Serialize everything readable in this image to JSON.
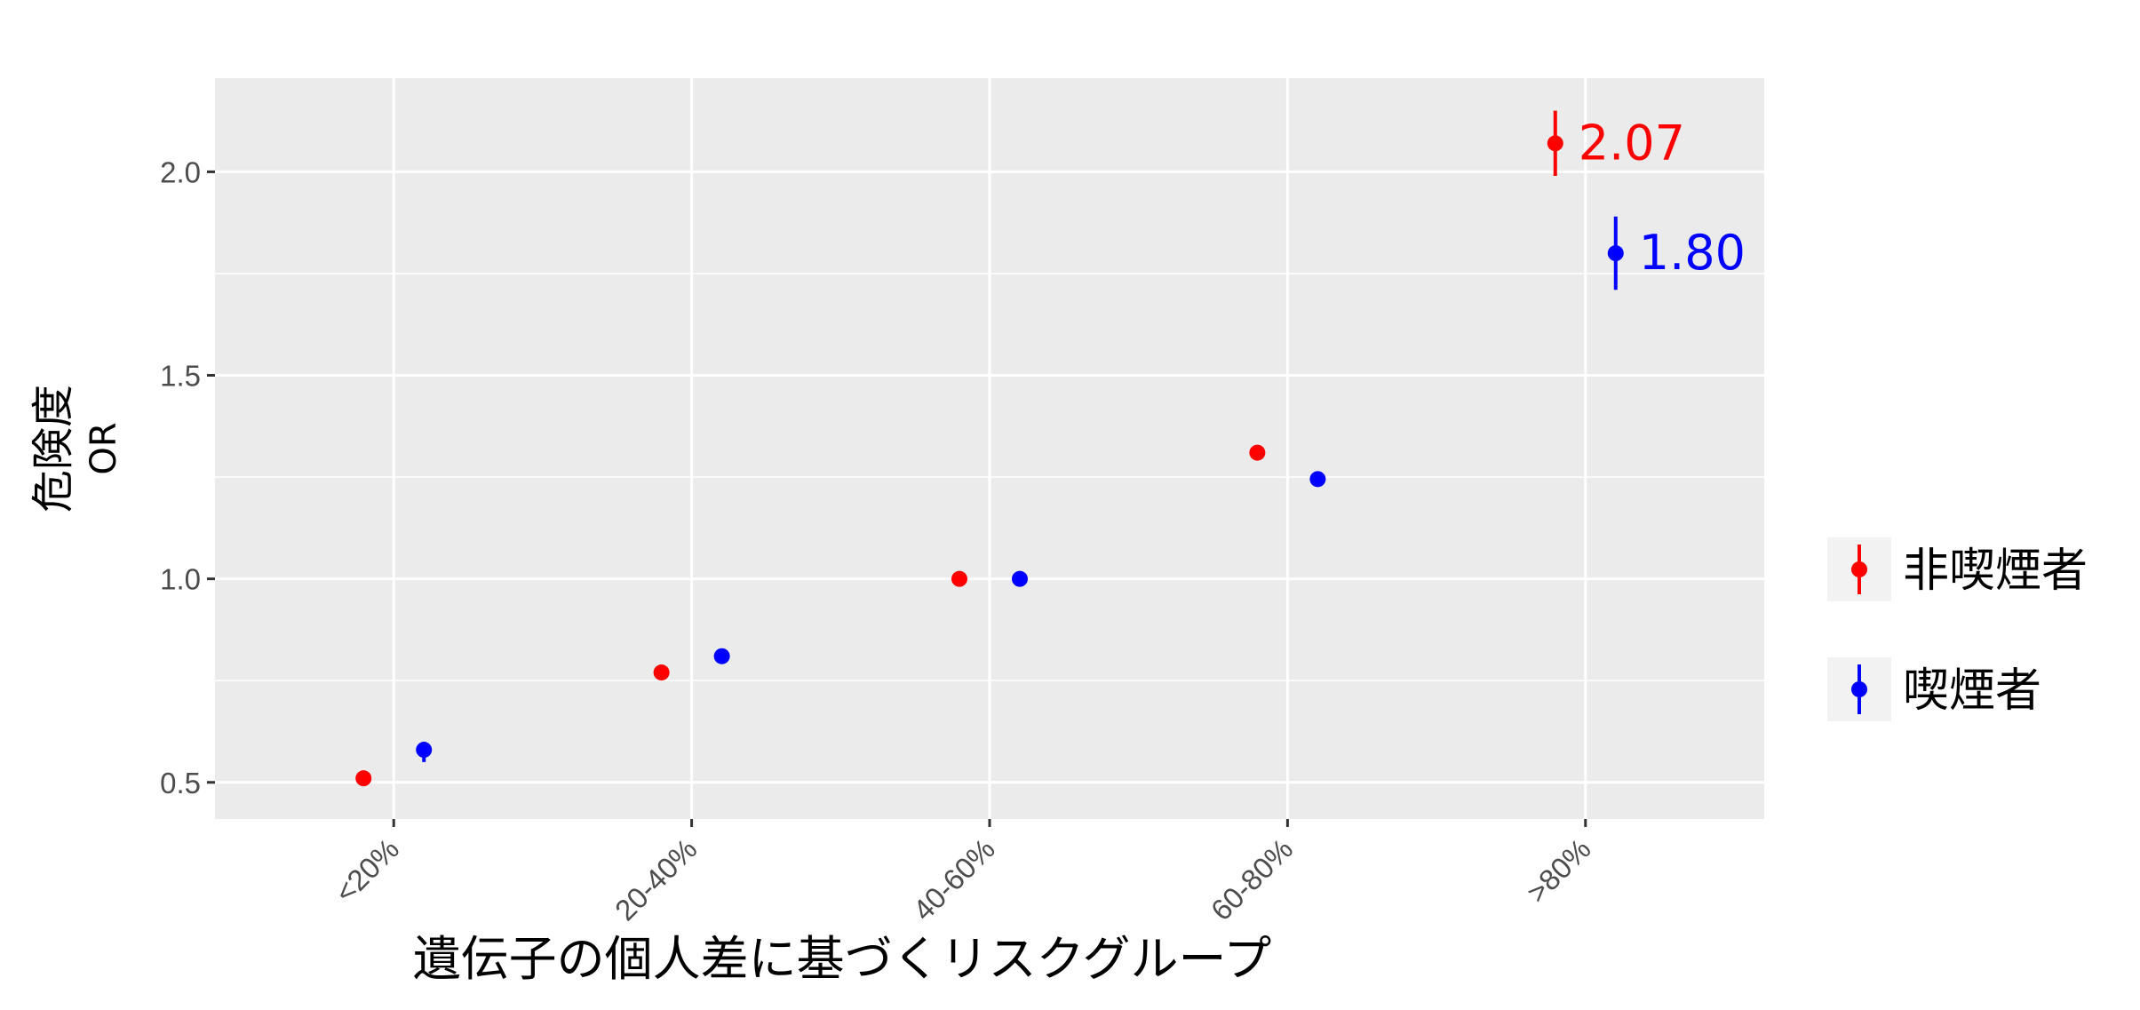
{
  "chart_data": {
    "type": "scatter",
    "xlabel": "遺伝子の個人差に基づくリスクグループ",
    "ylabel_lines": [
      "危険度",
      "OR"
    ],
    "categories": [
      "<20%",
      "20-40%",
      "40-60%",
      "60-80%",
      ">80%"
    ],
    "ylim": [
      0.41,
      2.23
    ],
    "yticks": [
      "0.5",
      "1.0",
      "1.5",
      "2.0"
    ],
    "ytick_values": [
      0.5,
      1.0,
      1.5,
      2.0
    ],
    "grid": true,
    "legend_position": "right",
    "series": [
      {
        "name": "非喫煙者",
        "color": "#ff0000",
        "values": [
          0.51,
          0.77,
          1.0,
          1.31,
          2.07
        ],
        "lower": [
          0.5,
          0.76,
          1.0,
          1.3,
          1.99
        ],
        "upper": [
          0.52,
          0.78,
          1.0,
          1.32,
          2.15
        ]
      },
      {
        "name": "喫煙者",
        "color": "#0000ff",
        "values": [
          0.58,
          0.81,
          1.0,
          1.245,
          1.8
        ],
        "lower": [
          0.55,
          0.8,
          1.0,
          1.235,
          1.71
        ],
        "upper": [
          0.6,
          0.82,
          1.0,
          1.255,
          1.89
        ]
      }
    ],
    "annotations": [
      {
        "text": "2.07",
        "series": 0,
        "category": 4
      },
      {
        "text": "1.80",
        "series": 1,
        "category": 4
      }
    ]
  }
}
